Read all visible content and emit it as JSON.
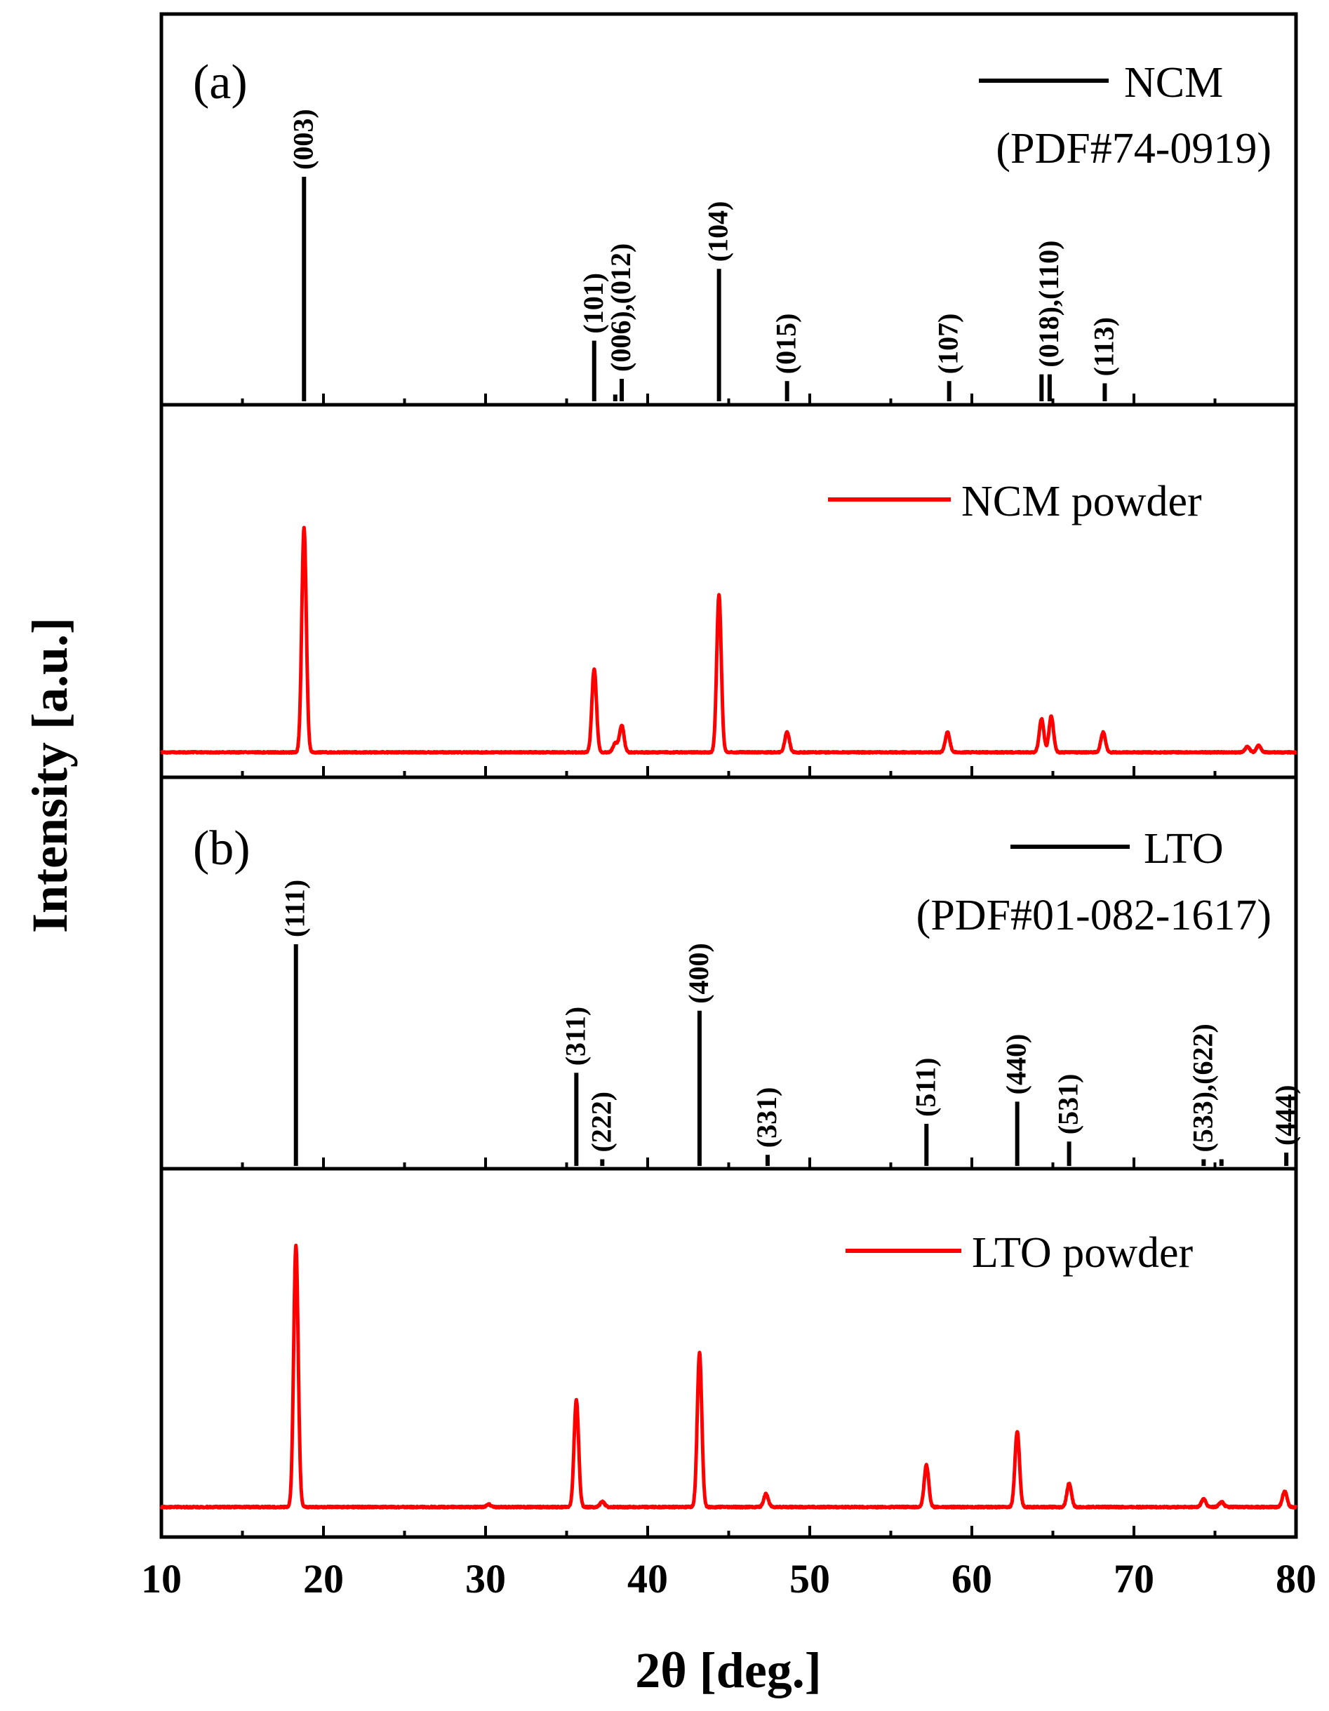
{
  "figure": {
    "ylabel": "Intensity [a.u.]",
    "xlabel": "2θ [deg.]",
    "xlim": [
      10,
      80
    ],
    "xticks": [
      "10",
      "20",
      "30",
      "40",
      "50",
      "60",
      "70",
      "80"
    ]
  },
  "chart_data": [
    {
      "panel": "a-reference",
      "type": "bar",
      "title": "(a)",
      "legend": "NCM",
      "legend_sub": "(PDF#74-0919)",
      "legend_position": "top-right",
      "color": "#000000",
      "xlim": [
        10,
        80
      ],
      "ylim": [
        0,
        1.1
      ],
      "sticks": [
        {
          "x": 18.8,
          "y": 1.0,
          "label": "(003)"
        },
        {
          "x": 36.7,
          "y": 0.27,
          "label": "(101)"
        },
        {
          "x": 38.0,
          "y": 0.03,
          "label": ""
        },
        {
          "x": 38.4,
          "y": 0.1,
          "label": "(006),(012)"
        },
        {
          "x": 44.4,
          "y": 0.59,
          "label": "(104)"
        },
        {
          "x": 48.6,
          "y": 0.09,
          "label": "(015)"
        },
        {
          "x": 58.6,
          "y": 0.09,
          "label": "(107)"
        },
        {
          "x": 64.3,
          "y": 0.12,
          "label": ""
        },
        {
          "x": 64.8,
          "y": 0.12,
          "label": "(018),(110)"
        },
        {
          "x": 68.2,
          "y": 0.08,
          "label": "(113)"
        }
      ]
    },
    {
      "panel": "a-measured",
      "type": "line",
      "legend": "NCM powder",
      "legend_position": "top-right",
      "color": "#ff0000",
      "xlim": [
        10,
        80
      ],
      "ylim": [
        0,
        1.2
      ],
      "baseline": 0.008,
      "peaks": [
        {
          "x": 18.8,
          "h": 1.0
        },
        {
          "x": 36.7,
          "h": 0.37
        },
        {
          "x": 38.0,
          "h": 0.04
        },
        {
          "x": 38.4,
          "h": 0.12
        },
        {
          "x": 44.4,
          "h": 0.7
        },
        {
          "x": 48.6,
          "h": 0.09
        },
        {
          "x": 58.5,
          "h": 0.09
        },
        {
          "x": 64.3,
          "h": 0.15
        },
        {
          "x": 64.9,
          "h": 0.16
        },
        {
          "x": 68.1,
          "h": 0.09
        },
        {
          "x": 77.0,
          "h": 0.025
        },
        {
          "x": 77.7,
          "h": 0.03
        }
      ]
    },
    {
      "panel": "b-reference",
      "type": "bar",
      "title": "(b)",
      "legend": "LTO",
      "legend_sub": "(PDF#01-082-1617)",
      "legend_position": "top-right",
      "color": "#000000",
      "xlim": [
        10,
        80
      ],
      "ylim": [
        0,
        1.1
      ],
      "sticks": [
        {
          "x": 18.3,
          "y": 1.0,
          "label": "(111)"
        },
        {
          "x": 35.6,
          "y": 0.42,
          "label": "(311)"
        },
        {
          "x": 37.2,
          "y": 0.03,
          "label": "(222)"
        },
        {
          "x": 43.2,
          "y": 0.7,
          "label": "(400)"
        },
        {
          "x": 47.4,
          "y": 0.05,
          "label": "(331)"
        },
        {
          "x": 57.2,
          "y": 0.19,
          "label": "(511)"
        },
        {
          "x": 62.8,
          "y": 0.29,
          "label": "(440)"
        },
        {
          "x": 66.0,
          "y": 0.11,
          "label": "(531)"
        },
        {
          "x": 74.3,
          "y": 0.03,
          "label": "(533),(622)"
        },
        {
          "x": 75.4,
          "y": 0.03,
          "label": ""
        },
        {
          "x": 79.4,
          "y": 0.06,
          "label": "(444)"
        }
      ]
    },
    {
      "panel": "b-measured",
      "type": "line",
      "legend": "LTO powder",
      "legend_position": "top-right",
      "color": "#ff0000",
      "xlim": [
        10,
        80
      ],
      "ylim": [
        0,
        1.25
      ],
      "baseline": 0.01,
      "peaks": [
        {
          "x": 18.3,
          "h": 1.0
        },
        {
          "x": 30.2,
          "h": 0.01
        },
        {
          "x": 35.6,
          "h": 0.41
        },
        {
          "x": 37.2,
          "h": 0.02
        },
        {
          "x": 43.2,
          "h": 0.59
        },
        {
          "x": 47.3,
          "h": 0.05
        },
        {
          "x": 57.2,
          "h": 0.16
        },
        {
          "x": 62.8,
          "h": 0.29
        },
        {
          "x": 66.0,
          "h": 0.09
        },
        {
          "x": 74.3,
          "h": 0.03
        },
        {
          "x": 75.4,
          "h": 0.02
        },
        {
          "x": 79.3,
          "h": 0.06
        }
      ]
    }
  ]
}
